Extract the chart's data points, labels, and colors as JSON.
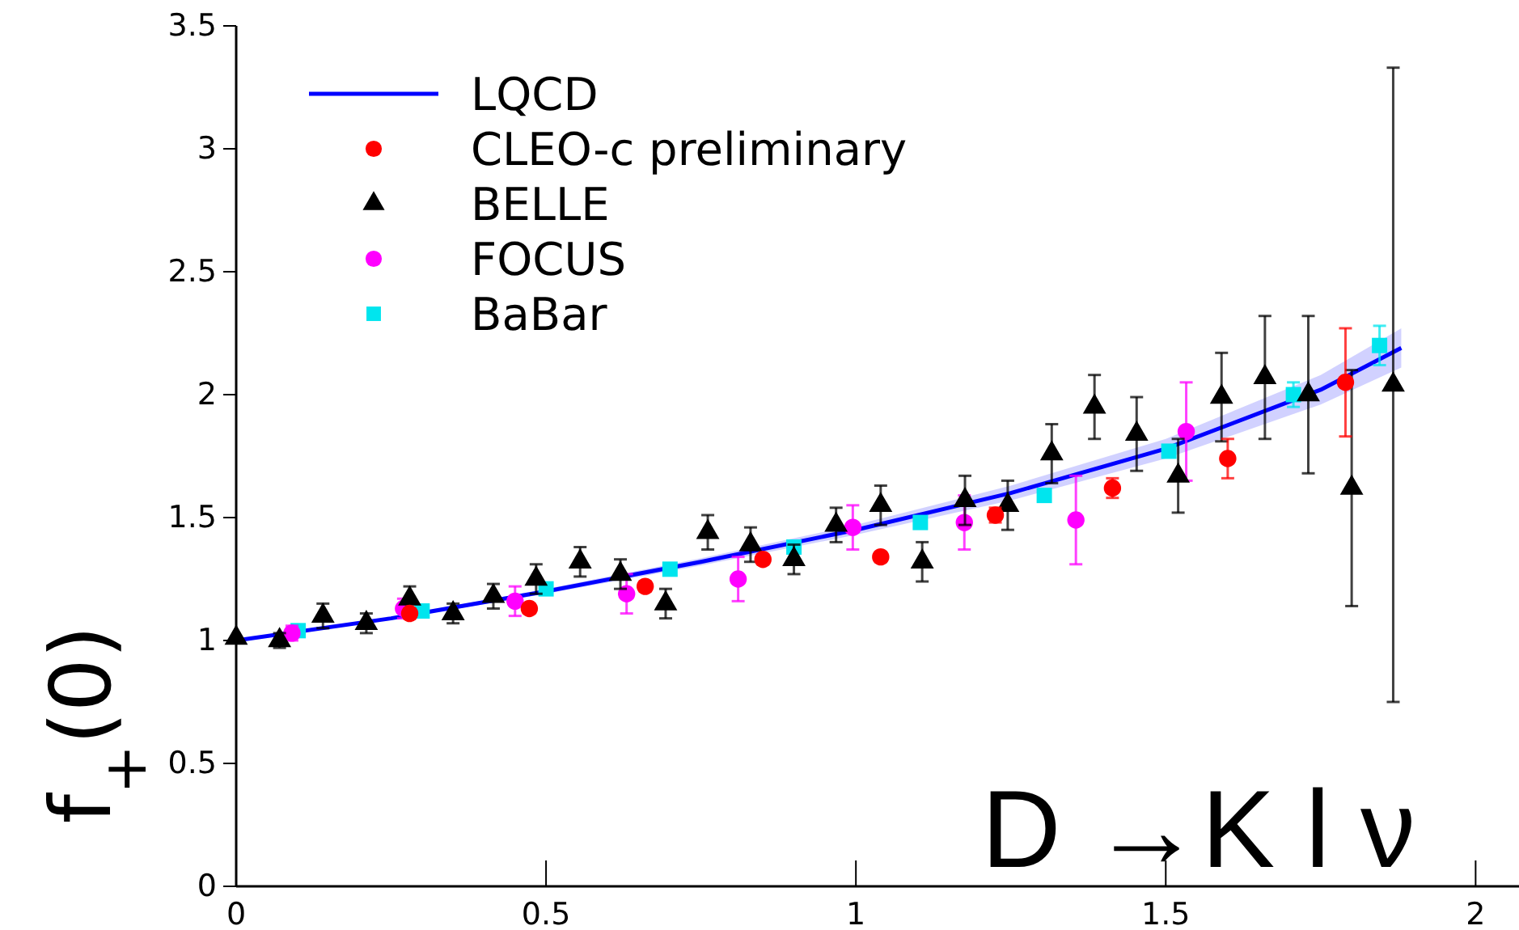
{
  "chart_data": {
    "type": "scatter",
    "ylabel": "f$_{+}$(0)",
    "annotations": [
      "D →K l ν"
    ],
    "xlim": [
      0,
      2.07
    ],
    "ylim": [
      0,
      3.5
    ],
    "xticks": [
      0,
      0.5,
      1,
      1.5,
      2
    ],
    "yticks": [
      0,
      0.5,
      1,
      1.5,
      2,
      2.5,
      3,
      3.5
    ],
    "legend": "top left",
    "grid": false,
    "series": [
      {
        "name": "LQCD",
        "type": "line",
        "color": "#0000ff",
        "marker": "none",
        "line_style": "solid",
        "x": [
          0,
          0.25,
          0.5,
          0.75,
          1,
          1.25,
          1.5,
          1.75,
          1.88
        ],
        "values": [
          1,
          1.09,
          1.2,
          1.32,
          1.45,
          1.6,
          1.78,
          2.02,
          2.19
        ],
        "lower": [
          1,
          1.085,
          1.19,
          1.305,
          1.43,
          1.57,
          1.74,
          1.96,
          2.11
        ],
        "upper": [
          1,
          1.095,
          1.21,
          1.335,
          1.47,
          1.63,
          1.82,
          2.08,
          2.27
        ]
      },
      {
        "name": "CLEO-c preliminary",
        "color": "#ff0000",
        "marker": "circle",
        "x": [
          0.28,
          0.473,
          0.66,
          0.85,
          1.04,
          1.225,
          1.414,
          1.6,
          1.79
        ],
        "values": [
          1.11,
          1.13,
          1.22,
          1.33,
          1.34,
          1.51,
          1.62,
          1.74,
          2.05
        ],
        "errors": [
          0.02,
          0.02,
          0.02,
          0.02,
          0.02,
          0.03,
          0.04,
          0.08,
          0.22
        ]
      },
      {
        "name": "BELLE",
        "color": "#000000",
        "marker": "triangle",
        "x": [
          0,
          0.07,
          0.14,
          0.21,
          0.28,
          0.35,
          0.415,
          0.484,
          0.555,
          0.62,
          0.693,
          0.761,
          0.83,
          0.9,
          0.968,
          1.04,
          1.107,
          1.176,
          1.245,
          1.316,
          1.385,
          1.453,
          1.52,
          1.59,
          1.66,
          1.73,
          1.8,
          1.867
        ],
        "values": [
          1.01,
          1,
          1.1,
          1.07,
          1.17,
          1.11,
          1.18,
          1.25,
          1.32,
          1.27,
          1.15,
          1.44,
          1.39,
          1.33,
          1.47,
          1.55,
          1.32,
          1.57,
          1.55,
          1.76,
          1.95,
          1.84,
          1.67,
          1.99,
          2.07,
          2,
          1.62,
          2.04
        ],
        "errors": [
          null,
          0.03,
          0.05,
          0.04,
          0.05,
          0.04,
          0.05,
          0.06,
          0.06,
          0.06,
          0.06,
          0.07,
          0.07,
          0.06,
          0.07,
          0.08,
          0.08,
          0.1,
          0.1,
          0.12,
          0.13,
          0.15,
          0.15,
          0.18,
          0.25,
          0.32,
          0.48,
          1.29
        ]
      },
      {
        "name": "FOCUS",
        "color": "#ff00ff",
        "marker": "circle",
        "x": [
          0.09,
          0.27,
          0.45,
          0.63,
          0.81,
          0.995,
          1.175,
          1.355,
          1.533
        ],
        "values": [
          1.03,
          1.13,
          1.16,
          1.19,
          1.25,
          1.46,
          1.48,
          1.49,
          1.85
        ],
        "errors": [
          0.03,
          0.04,
          0.06,
          0.08,
          0.09,
          0.09,
          0.11,
          0.18,
          0.2
        ]
      },
      {
        "name": "BaBar",
        "color": "#00e5ee",
        "marker": "square",
        "x": [
          0.1,
          0.3,
          0.5,
          0.7,
          0.9,
          1.104,
          1.304,
          1.505,
          1.706,
          1.845
        ],
        "values": [
          1.04,
          1.12,
          1.21,
          1.29,
          1.38,
          1.48,
          1.59,
          1.77,
          2,
          2.2
        ],
        "errors": [
          null,
          null,
          null,
          null,
          null,
          null,
          null,
          null,
          0.05,
          0.08
        ]
      }
    ]
  }
}
